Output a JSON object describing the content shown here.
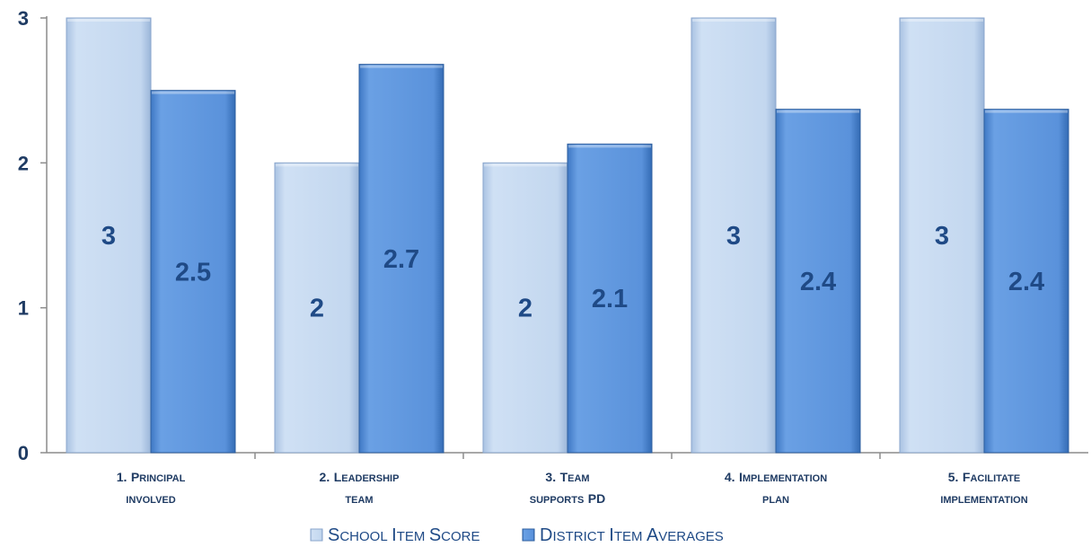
{
  "chart_data": {
    "type": "bar",
    "categories": [
      [
        "1. Principal",
        "involved"
      ],
      [
        "2. Leadership",
        "team"
      ],
      [
        "3. Team",
        "supports PD"
      ],
      [
        "4. Implementation",
        "plan"
      ],
      [
        "5. Facilitate",
        "implementation"
      ]
    ],
    "series": [
      {
        "name": "School Item Score",
        "values": [
          3,
          2,
          2,
          3,
          3
        ],
        "labels": [
          "3",
          "2",
          "2",
          "3",
          "3"
        ],
        "color": "#c5d9f1"
      },
      {
        "name": "District Item Averages",
        "values": [
          2.5,
          2.68,
          2.13,
          2.37,
          2.37
        ],
        "labels": [
          "2.5",
          "2.7",
          "2.1",
          "2.4",
          "2.4"
        ],
        "color": "#5b93dc"
      }
    ],
    "ylim": [
      0,
      3
    ],
    "yticks": [
      "0",
      "1",
      "2",
      "3"
    ],
    "grid": false,
    "legend_position": "bottom",
    "title": "",
    "xlabel": "",
    "ylabel": ""
  }
}
